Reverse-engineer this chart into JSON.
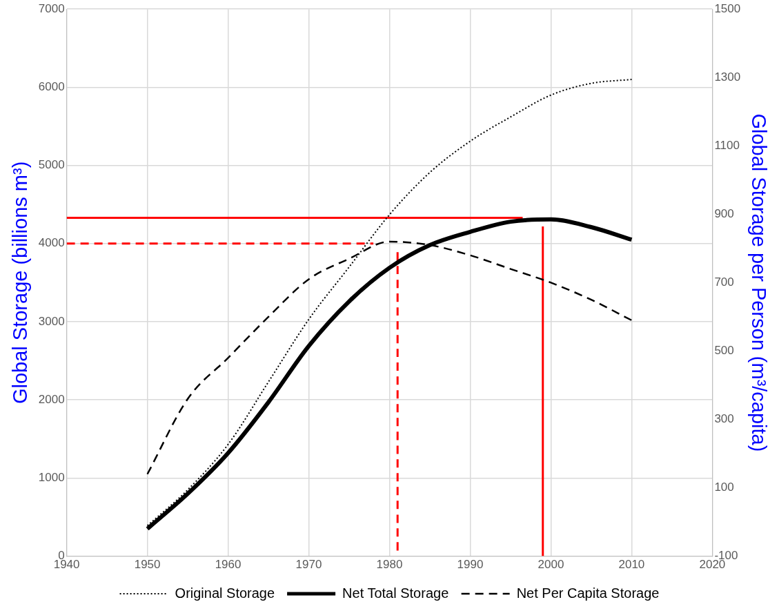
{
  "chart_data": {
    "type": "line",
    "xlabel": null,
    "ylabel": "Global Storage (billions m³)",
    "y2label": "Global Storage per Person (m³/capita)",
    "xlim": [
      1940,
      2020
    ],
    "xticks": [
      1940,
      1950,
      1960,
      1970,
      1980,
      1990,
      2000,
      2010,
      2020
    ],
    "ylim": [
      0,
      7000
    ],
    "yticks": [
      0,
      1000,
      2000,
      3000,
      4000,
      5000,
      6000,
      7000
    ],
    "y2lim": [
      -100,
      1500
    ],
    "y2ticks": [
      -100,
      100,
      300,
      500,
      700,
      900,
      1100,
      1300,
      1500
    ],
    "grid": true,
    "legend": "bottom",
    "marker": "none",
    "series": [
      {
        "name": "Original Storage",
        "color": "#000000",
        "line_style": "dotted",
        "x": [
          1950,
          1955,
          1960,
          1965,
          1970,
          1975,
          1980,
          1985,
          1990,
          1995,
          2000,
          2005,
          2010
        ],
        "values": [
          390,
          850,
          1430,
          2230,
          3030,
          3700,
          4370,
          4910,
          5310,
          5620,
          5900,
          6050,
          6100
        ]
      },
      {
        "name": "Net Total Storage",
        "color": "#000000",
        "line_style": "solid",
        "x": [
          1950,
          1955,
          1960,
          1965,
          1970,
          1975,
          1980,
          1985,
          1990,
          1995,
          2000,
          2005,
          2010
        ],
        "values": [
          350,
          800,
          1320,
          1970,
          2690,
          3260,
          3690,
          3980,
          4150,
          4280,
          4310,
          4210,
          4050
        ]
      },
      {
        "name": "Net Per Capita Storage",
        "color": "#000000",
        "line_style": "dashed",
        "axis": "y2",
        "x": [
          1950,
          1955,
          1960,
          1965,
          1970,
          1975,
          1980,
          1985,
          1990,
          1995,
          2000,
          2005,
          2010
        ],
        "values": [
          140,
          360,
          480,
          600,
          710,
          770,
          820,
          810,
          780,
          740,
          700,
          650,
          590
        ]
      },
      {
        "color": "#ff0000",
        "line_style": "solid",
        "x": [
          1940,
          1996.5
        ],
        "values": [
          4330,
          4330
        ]
      },
      {
        "color": "#ff0000",
        "line_style": "solid",
        "x": [
          1999,
          1999
        ],
        "values": [
          0,
          4220
        ]
      },
      {
        "color": "#ff0000",
        "line_style": "dashed",
        "x": [
          1940,
          1978
        ],
        "values": [
          4000,
          4000
        ]
      },
      {
        "color": "#ff0000",
        "line_style": "dashed",
        "x": [
          1981,
          1981
        ],
        "values": [
          3890,
          0
        ]
      }
    ]
  }
}
